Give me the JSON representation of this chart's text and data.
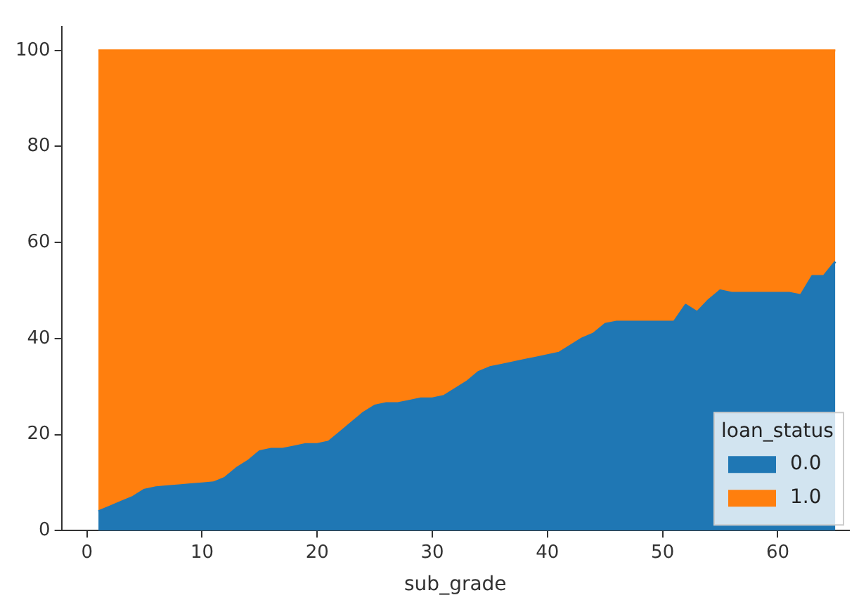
{
  "chart_data": {
    "type": "area",
    "stacked": true,
    "xlabel": "sub_grade",
    "legend_title": "loan_status",
    "legend": "bottom right",
    "grid": false,
    "marker": "none",
    "x": [
      1,
      2,
      3,
      4,
      5,
      6,
      7,
      8,
      9,
      10,
      11,
      12,
      13,
      14,
      15,
      16,
      17,
      18,
      19,
      20,
      21,
      22,
      23,
      24,
      25,
      26,
      27,
      28,
      29,
      30,
      31,
      32,
      33,
      34,
      35,
      36,
      37,
      38,
      39,
      40,
      41,
      42,
      43,
      44,
      45,
      46,
      47,
      48,
      49,
      50,
      51,
      52,
      53,
      54,
      55,
      56,
      57,
      58,
      59,
      60,
      61,
      62,
      63,
      64,
      65
    ],
    "xlim": [
      -2.2,
      66.2
    ],
    "xticks": [
      0,
      10,
      20,
      30,
      40,
      50,
      60
    ],
    "ylim": [
      0,
      105
    ],
    "yticks": [
      0,
      20,
      40,
      60,
      80,
      100
    ],
    "series": [
      {
        "name": "0.0",
        "color": "#1f77b4",
        "values": [
          4,
          5,
          6,
          7,
          8.5,
          9,
          9.2,
          9.4,
          9.6,
          9.8,
          10,
          11,
          13,
          14.5,
          16.5,
          17,
          17,
          17.5,
          18,
          18,
          18.5,
          20.5,
          22.5,
          24.5,
          26,
          26.5,
          26.5,
          27,
          27.5,
          27.5,
          28,
          29.5,
          31,
          33,
          34,
          34.5,
          35,
          35.5,
          36,
          36.5,
          37,
          38.5,
          40,
          41,
          43,
          43.5,
          43.5,
          43.5,
          43.5,
          43.5,
          43.5,
          47,
          45.5,
          48,
          50,
          49.5,
          49.5,
          49.5,
          49.5,
          49.5,
          49.5,
          49,
          53,
          53,
          56
        ]
      },
      {
        "name": "1.0",
        "color": "#ff7f0e",
        "values": [
          96,
          95,
          94,
          93,
          91.5,
          91,
          90.8,
          90.6,
          90.4,
          90.2,
          90,
          89,
          87,
          85.5,
          83.5,
          83,
          83,
          82.5,
          82,
          82,
          81.5,
          79.5,
          77.5,
          75.5,
          74,
          73.5,
          73.5,
          73,
          72.5,
          72.5,
          72,
          70.5,
          69,
          67,
          66,
          65.5,
          65,
          64.5,
          64,
          63.5,
          63,
          61.5,
          60,
          59,
          57,
          56.5,
          56.5,
          56.5,
          56.5,
          56.5,
          56.5,
          53,
          54.5,
          52,
          50,
          50.5,
          50.5,
          50.5,
          50.5,
          50.5,
          50.5,
          51,
          47,
          47,
          44
        ]
      }
    ]
  }
}
